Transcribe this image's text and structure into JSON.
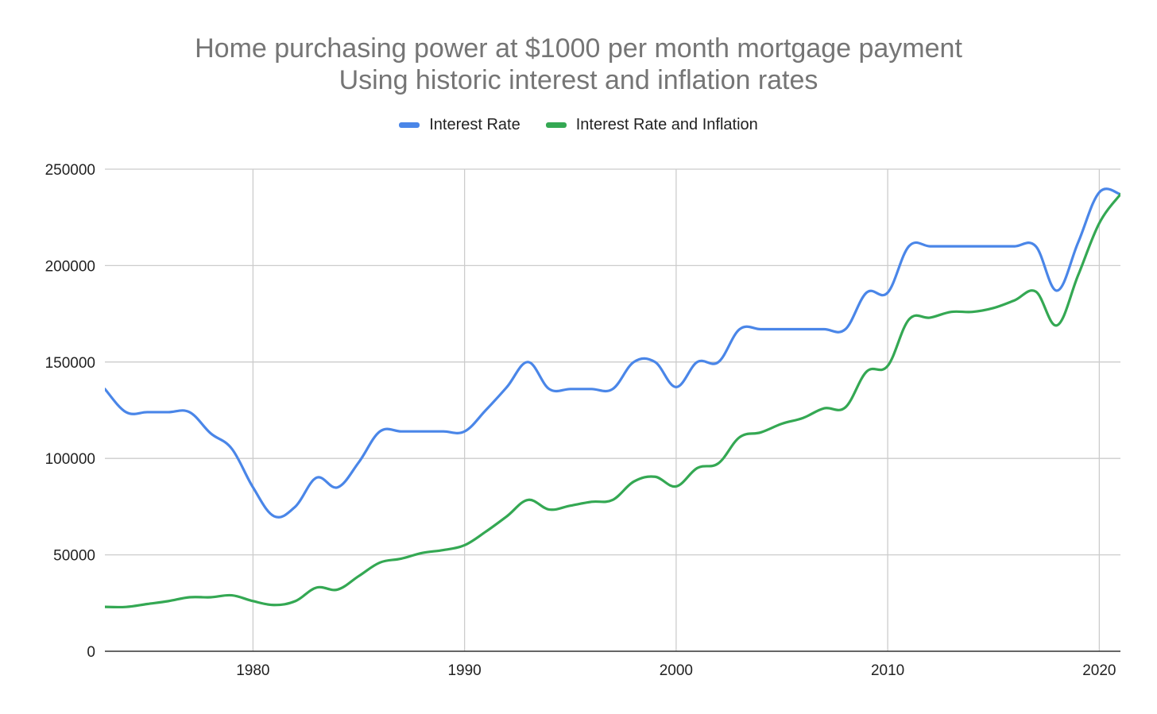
{
  "chart_data": {
    "type": "line",
    "title": "Home purchasing power at $1000 per month mortgage payment",
    "subtitle": "Using historic interest and inflation rates",
    "xlabel": "",
    "ylabel": "",
    "xlim": [
      1973,
      2021
    ],
    "ylim": [
      0,
      250000
    ],
    "x_ticks": [
      1980,
      1990,
      2000,
      2010,
      2020
    ],
    "y_ticks": [
      0,
      50000,
      100000,
      150000,
      200000,
      250000
    ],
    "grid": true,
    "legend_position": "top",
    "x": [
      1973,
      1974,
      1975,
      1976,
      1977,
      1978,
      1979,
      1980,
      1981,
      1982,
      1983,
      1984,
      1985,
      1986,
      1987,
      1988,
      1989,
      1990,
      1991,
      1992,
      1993,
      1994,
      1995,
      1996,
      1997,
      1998,
      1999,
      2000,
      2001,
      2002,
      2003,
      2004,
      2005,
      2006,
      2007,
      2008,
      2009,
      2010,
      2011,
      2012,
      2013,
      2014,
      2015,
      2016,
      2017,
      2018,
      2019,
      2020,
      2021
    ],
    "series": [
      {
        "name": "Interest Rate",
        "color": "#4a86e8",
        "values": [
          136000,
          124000,
          124000,
          124000,
          124000,
          113000,
          105000,
          85000,
          70000,
          75000,
          90000,
          85000,
          98000,
          114000,
          114000,
          114000,
          114000,
          114000,
          125000,
          137000,
          150000,
          136000,
          136000,
          136000,
          136000,
          150000,
          150000,
          137000,
          150000,
          150000,
          167000,
          167000,
          167000,
          167000,
          167000,
          167000,
          186000,
          186000,
          210000,
          210000,
          210000,
          210000,
          210000,
          210000,
          210000,
          187000,
          212000,
          238000,
          237000
        ]
      },
      {
        "name": "Interest Rate and Inflation",
        "color": "#34a853",
        "values": [
          23000,
          23000,
          24500,
          26000,
          28000,
          28000,
          29000,
          26000,
          24000,
          26000,
          33000,
          32000,
          39000,
          46000,
          48000,
          51000,
          52500,
          55000,
          62000,
          70000,
          78500,
          73500,
          75500,
          77500,
          78500,
          88000,
          90500,
          85500,
          95000,
          97500,
          111000,
          113500,
          118000,
          121000,
          126000,
          126500,
          145000,
          148000,
          172000,
          173000,
          176000,
          176000,
          178000,
          182000,
          186500,
          169000,
          195000,
          222000,
          237000
        ]
      }
    ]
  }
}
